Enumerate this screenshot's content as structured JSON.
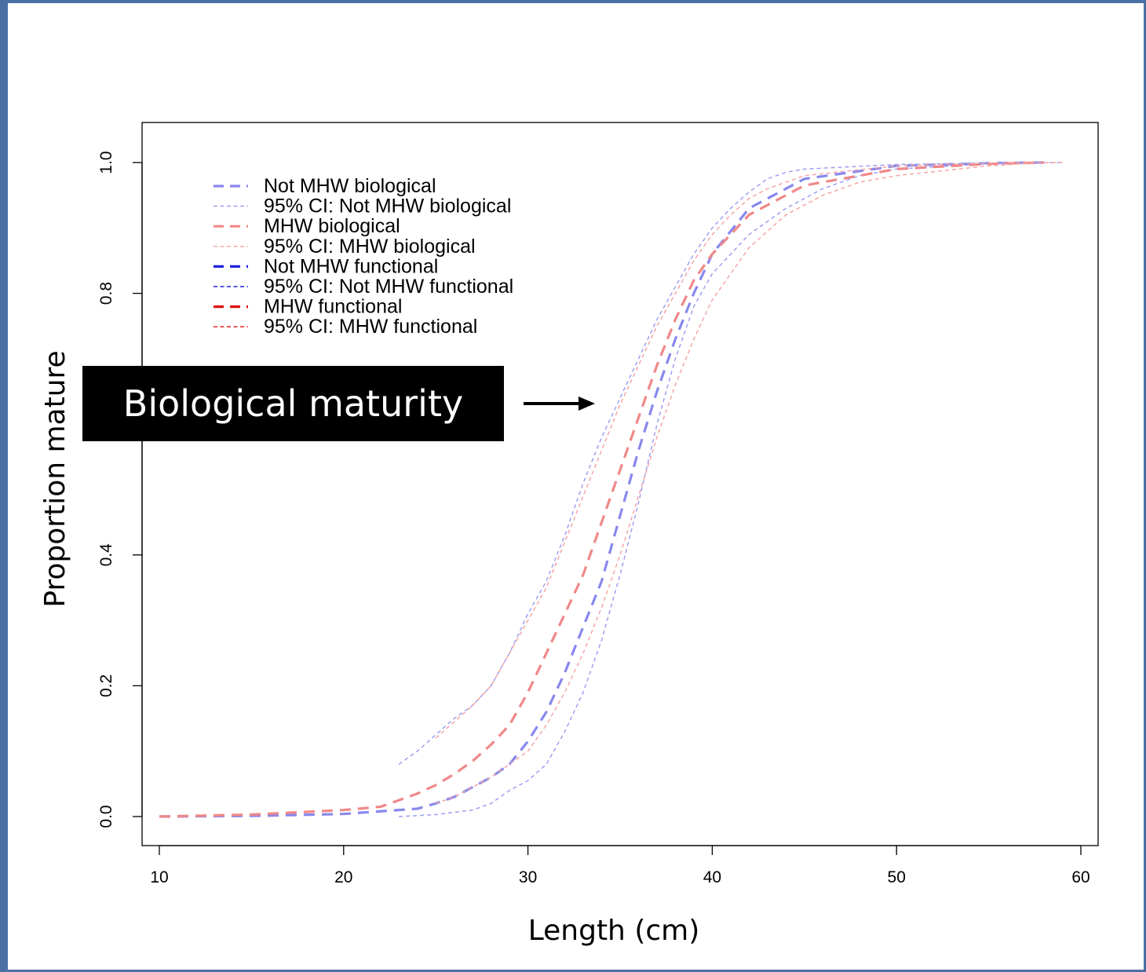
{
  "chart_data": {
    "type": "line",
    "title": "",
    "xlabel": "Length (cm)",
    "ylabel": "Proportion mature",
    "xlim": [
      10,
      60
    ],
    "ylim": [
      0,
      1
    ],
    "x_ticks": [
      10,
      20,
      30,
      40,
      50,
      60
    ],
    "y_ticks": [
      "0.0",
      "0.2",
      "0.4",
      "0.8",
      "1.0"
    ],
    "grid": false,
    "legend_position": "top-left",
    "annotation": "Biological maturity",
    "series": [
      {
        "name": "Not MHW biological",
        "color": "#8888ee",
        "style": "long-dash",
        "x": [
          10,
          15,
          20,
          24,
          25,
          26,
          27,
          28,
          29,
          30,
          31,
          32,
          33,
          34,
          35,
          36,
          37,
          38,
          39,
          40,
          42,
          45,
          50,
          55,
          58
        ],
        "y": [
          0,
          0.001,
          0.004,
          0.012,
          0.02,
          0.03,
          0.045,
          0.06,
          0.08,
          0.115,
          0.16,
          0.22,
          0.29,
          0.36,
          0.46,
          0.56,
          0.65,
          0.73,
          0.8,
          0.86,
          0.93,
          0.975,
          0.995,
          0.999,
          1.0
        ]
      },
      {
        "name": "95% CI: Not MHW biological",
        "color": "#9999f0",
        "style": "short-dash",
        "x": [
          23,
          24,
          25,
          26,
          27,
          28,
          29,
          30,
          31,
          32,
          33,
          34,
          35,
          36,
          37,
          38,
          39,
          40,
          41,
          42,
          43,
          44,
          45,
          50,
          55,
          59
        ],
        "y": [
          0.08,
          0.1,
          0.125,
          0.15,
          0.17,
          0.2,
          0.25,
          0.31,
          0.36,
          0.43,
          0.51,
          0.58,
          0.64,
          0.7,
          0.76,
          0.81,
          0.86,
          0.9,
          0.93,
          0.955,
          0.975,
          0.985,
          0.99,
          0.997,
          0.999,
          1.0
        ]
      },
      {
        "name": "95% CI: Not MHW biological",
        "color": "#9999f0",
        "style": "short-dash",
        "x": [
          23,
          25,
          27,
          28,
          29,
          30,
          31,
          32,
          33,
          34,
          35,
          36,
          37,
          38,
          39,
          40,
          42,
          44,
          46,
          48,
          50,
          55,
          58
        ],
        "y": [
          0,
          0.003,
          0.01,
          0.02,
          0.04,
          0.055,
          0.08,
          0.13,
          0.19,
          0.27,
          0.37,
          0.48,
          0.6,
          0.7,
          0.78,
          0.83,
          0.89,
          0.93,
          0.96,
          0.98,
          0.99,
          0.998,
          1.0
        ]
      },
      {
        "name": "MHW biological",
        "color": "#f08888",
        "style": "long-dash",
        "x": [
          10,
          15,
          20,
          22,
          23,
          24,
          25,
          26,
          27,
          28,
          29,
          30,
          31,
          32,
          33,
          34,
          35,
          36,
          37,
          38,
          39,
          40,
          42,
          45,
          50,
          55,
          58
        ],
        "y": [
          0,
          0.003,
          0.01,
          0.015,
          0.025,
          0.035,
          0.048,
          0.065,
          0.085,
          0.11,
          0.14,
          0.19,
          0.25,
          0.31,
          0.37,
          0.45,
          0.53,
          0.61,
          0.69,
          0.76,
          0.82,
          0.86,
          0.92,
          0.965,
          0.99,
          0.998,
          1.0
        ]
      },
      {
        "name": "95% CI: MHW biological",
        "color": "#f4a0a0",
        "style": "short-dash",
        "x": [
          25,
          26,
          27,
          28,
          29,
          30,
          31,
          32,
          33,
          34,
          35,
          36,
          37,
          38,
          39,
          40,
          41,
          42,
          43,
          45,
          50,
          55,
          59
        ],
        "y": [
          0.12,
          0.145,
          0.17,
          0.2,
          0.25,
          0.3,
          0.35,
          0.42,
          0.49,
          0.56,
          0.63,
          0.69,
          0.75,
          0.8,
          0.85,
          0.89,
          0.92,
          0.945,
          0.96,
          0.98,
          0.995,
          0.999,
          1.0
        ]
      },
      {
        "name": "95% CI: MHW biological",
        "color": "#f4a0a0",
        "style": "short-dash",
        "x": [
          25,
          26,
          27,
          28,
          29,
          30,
          31,
          32,
          33,
          34,
          35,
          36,
          37,
          38,
          39,
          40,
          42,
          44,
          46,
          48,
          50,
          55,
          58
        ],
        "y": [
          0.02,
          0.03,
          0.045,
          0.06,
          0.08,
          0.1,
          0.14,
          0.19,
          0.25,
          0.32,
          0.4,
          0.49,
          0.58,
          0.66,
          0.73,
          0.79,
          0.87,
          0.92,
          0.95,
          0.97,
          0.98,
          0.995,
          1.0
        ]
      },
      {
        "name": "Not MHW functional",
        "color": "#2222dd",
        "style": "long-dash",
        "x": [],
        "y": []
      },
      {
        "name": "95% CI: Not MHW functional",
        "color": "#2222dd",
        "style": "short-dash",
        "x": [],
        "y": []
      },
      {
        "name": "MHW functional",
        "color": "#dd1111",
        "style": "long-dash",
        "x": [],
        "y": []
      },
      {
        "name": "95% CI: MHW functional",
        "color": "#dd1111",
        "style": "short-dash",
        "x": [],
        "y": []
      }
    ]
  }
}
